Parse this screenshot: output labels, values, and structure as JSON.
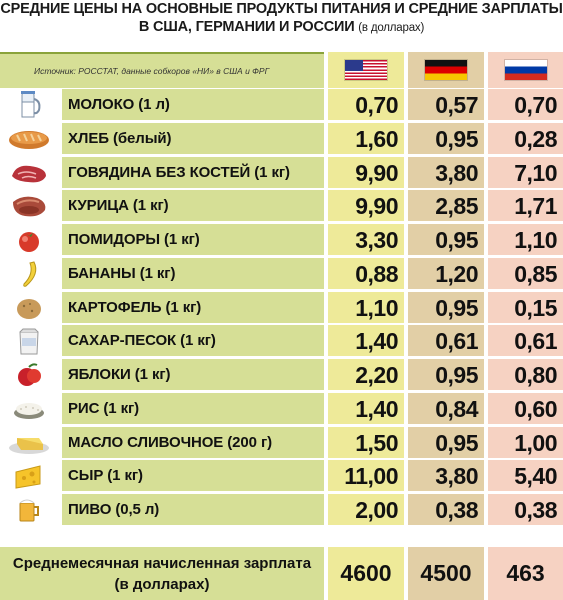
{
  "title": {
    "line1": "СРЕДНИЕ ЦЕНЫ НА ОСНОВНЫЕ ПРОДУКТЫ ПИТАНИЯ И СРЕДНИЕ ЗАРПЛАТЫ",
    "line2": "В США, ГЕРМАНИИ И РОССИИ",
    "line2_small": "(в долларах)"
  },
  "source": "Источник: РОССТАТ, данные собкоров «НИ» в США и ФРГ",
  "countries": [
    {
      "flag": "us-flag",
      "color": "#eeea99"
    },
    {
      "flag": "germany-flag",
      "color": "#e2cfa6"
    },
    {
      "flag": "russia-flag",
      "color": "#f6d2c2"
    }
  ],
  "rows": [
    {
      "icon": "milk-icon",
      "name": "МОЛОКО (1 л)",
      "us": "0,70",
      "de": "0,57",
      "ru": "0,70"
    },
    {
      "icon": "bread-icon",
      "name": "ХЛЕБ (белый)",
      "us": "1,60",
      "de": "0,95",
      "ru": "0,28"
    },
    {
      "icon": "beef-icon",
      "name": "ГОВЯДИНА БЕЗ КОСТЕЙ (1 кг)",
      "us": "9,90",
      "de": "3,80",
      "ru": "7,10"
    },
    {
      "icon": "chicken-icon",
      "name": "КУРИЦА (1 кг)",
      "us": "9,90",
      "de": "2,85",
      "ru": "1,71"
    },
    {
      "icon": "tomato-icon",
      "name": "ПОМИДОРЫ (1 кг)",
      "us": "3,30",
      "de": "0,95",
      "ru": "1,10"
    },
    {
      "icon": "banana-icon",
      "name": "БАНАНЫ (1 кг)",
      "us": "0,88",
      "de": "1,20",
      "ru": "0,85"
    },
    {
      "icon": "potato-icon",
      "name": "КАРТОФЕЛЬ (1 кг)",
      "us": "1,10",
      "de": "0,95",
      "ru": "0,15"
    },
    {
      "icon": "sugar-icon",
      "name": "САХАР-ПЕСОК (1 кг)",
      "us": "1,40",
      "de": "0,61",
      "ru": "0,61"
    },
    {
      "icon": "apple-icon",
      "name": "ЯБЛОКИ (1 кг)",
      "us": "2,20",
      "de": "0,95",
      "ru": "0,80"
    },
    {
      "icon": "rice-icon",
      "name": "РИС (1 кг)",
      "us": "1,40",
      "de": "0,84",
      "ru": "0,60"
    },
    {
      "icon": "butter-icon",
      "name": "МАСЛО СЛИВОЧНОЕ (200 г)",
      "us": "1,50",
      "de": "0,95",
      "ru": "1,00"
    },
    {
      "icon": "cheese-icon",
      "name": "СЫР (1 кг)",
      "us": "11,00",
      "de": "3,80",
      "ru": "5,40"
    },
    {
      "icon": "beer-icon",
      "name": "ПИВО (0,5 л)",
      "us": "2,00",
      "de": "0,38",
      "ru": "0,38"
    }
  ],
  "salary": {
    "line1": "Среднемесячная начисленная зарплата",
    "line2": "(в долларах)",
    "us": "4600",
    "de": "4500",
    "ru": "463"
  },
  "colors": {
    "label_bg": "#d6df96",
    "us_bg": "#eeea99",
    "de_bg": "#e2cfa6",
    "ru_bg": "#f6d2c2"
  }
}
